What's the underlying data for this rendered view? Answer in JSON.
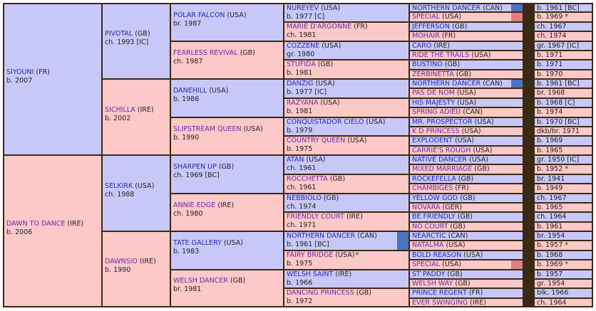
{
  "pedigree": {
    "subject": {
      "name": "SIYOUNI",
      "country": "(FR)",
      "info": "b. 2007",
      "sex": "m"
    },
    "gen1": [
      {
        "name": "SIYOUNI",
        "country": "(FR)",
        "info": "b. 2007",
        "sex": "m"
      },
      {
        "name": "DAWN TO DANCE",
        "country": "(IRE)",
        "info": "b. 2006",
        "sex": "f"
      }
    ],
    "gen2": [
      {
        "name": "PIVOTAL",
        "country": "(GB)",
        "info": "ch. 1993 [IC]",
        "sex": "m"
      },
      {
        "name": "SICHILLA",
        "country": "(IRE)",
        "info": "b. 2002",
        "sex": "f"
      },
      {
        "name": "SELKIRK",
        "country": "(USA)",
        "info": "ch. 1988",
        "sex": "m"
      },
      {
        "name": "DAWNSIO",
        "country": "(IRE)",
        "info": "b. 1990",
        "sex": "f"
      }
    ],
    "gen3": [
      {
        "name": "POLAR FALCON",
        "country": "(USA)",
        "info": "br. 1987",
        "sex": "m"
      },
      {
        "name": "FEARLESS REVIVAL",
        "country": "(GB)",
        "info": "ch. 1987",
        "sex": "f"
      },
      {
        "name": "DANEHILL",
        "country": "(USA)",
        "info": "b. 1986",
        "sex": "m"
      },
      {
        "name": "SLIPSTREAM QUEEN",
        "country": "(USA)",
        "info": "b. 1990",
        "sex": "f"
      },
      {
        "name": "SHARPEN UP",
        "country": "(GB)",
        "info": "ch. 1969 [BC]",
        "sex": "m"
      },
      {
        "name": "ANNIE EDGE",
        "country": "(IRE)",
        "info": "ch. 1980",
        "sex": "f"
      },
      {
        "name": "TATE GALLERY",
        "country": "(USA)",
        "info": "b. 1983",
        "sex": "m"
      },
      {
        "name": "WELSH DANCER",
        "country": "(GB)",
        "info": "br. 1981",
        "sex": "f"
      }
    ],
    "gen4": [
      {
        "name": "NUREYEV",
        "country": "(USA)",
        "info": "b. 1977 [C]",
        "sex": "m",
        "star": "",
        "swatch": ""
      },
      {
        "name": "MARIE D'ARGONNE",
        "country": "(FR)",
        "info": "ch. 1981",
        "sex": "f",
        "star": "",
        "swatch": ""
      },
      {
        "name": "COZZENE",
        "country": "(USA)",
        "info": "gr. 1980",
        "sex": "m",
        "star": "",
        "swatch": ""
      },
      {
        "name": "STUFIDA",
        "country": "(GB)",
        "info": "b. 1981",
        "sex": "f",
        "star": "",
        "swatch": ""
      },
      {
        "name": "DANZIG",
        "country": "(USA)",
        "info": "b. 1977 [IC]",
        "sex": "m",
        "star": "",
        "swatch": ""
      },
      {
        "name": "RAZYANA",
        "country": "(USA)",
        "info": "b. 1981",
        "sex": "f",
        "star": "",
        "swatch": ""
      },
      {
        "name": "CONQUISTADOR CIELO",
        "country": "(USA)",
        "info": "b. 1979",
        "sex": "m",
        "star": "",
        "swatch": ""
      },
      {
        "name": "COUNTRY QUEEN",
        "country": "(USA)",
        "info": "b. 1975",
        "sex": "f",
        "star": "",
        "swatch": ""
      },
      {
        "name": "ATAN",
        "country": "(USA)",
        "info": "ch. 1961",
        "sex": "m",
        "star": "",
        "swatch": ""
      },
      {
        "name": "ROCCHETTA",
        "country": "(GB)",
        "info": "ch. 1961",
        "sex": "f",
        "star": "",
        "swatch": ""
      },
      {
        "name": "NEBBIOLO",
        "country": "(GB)",
        "info": "ch. 1974",
        "sex": "m",
        "star": "",
        "swatch": ""
      },
      {
        "name": "FRIENDLY COURT",
        "country": "(IRE)",
        "info": "ch. 1971",
        "sex": "f",
        "star": "",
        "swatch": ""
      },
      {
        "name": "NORTHERN DANCER",
        "country": "(CAN)",
        "info": "b. 1961 [BC]",
        "sex": "m",
        "star": "",
        "swatch": "#4a74c0"
      },
      {
        "name": "FAIRY BRIDGE",
        "country": "(USA)",
        "info": "b. 1975",
        "sex": "f",
        "star": "*",
        "swatch": ""
      },
      {
        "name": "WELSH SAINT",
        "country": "(IRE)",
        "info": "b. 1966",
        "sex": "m",
        "star": "",
        "swatch": ""
      },
      {
        "name": "DANCING PRINCESS",
        "country": "(GB)",
        "info": "b. 1972",
        "sex": "f",
        "star": "",
        "swatch": ""
      }
    ],
    "gen5": [
      {
        "name": "NORTHERN DANCER",
        "country": "(CAN)",
        "info": "b. 1961 [BC]",
        "sex": "m",
        "star": "",
        "swatch": "#4a74c0"
      },
      {
        "name": "SPECIAL",
        "country": "(USA)",
        "info": "b. 1969",
        "sex": "f",
        "star": "*",
        "swatch": "#e08080"
      },
      {
        "name": "JEFFERSON",
        "country": "(GB)",
        "info": "ch. 1967",
        "sex": "m",
        "star": "",
        "swatch": ""
      },
      {
        "name": "MOHAIR",
        "country": "(FR)",
        "info": "ch. 1974",
        "sex": "f",
        "star": "",
        "swatch": ""
      },
      {
        "name": "CARO",
        "country": "(IRE)",
        "info": "gr. 1967 [IC]",
        "sex": "m",
        "star": "",
        "swatch": ""
      },
      {
        "name": "RIDE THE TRAILS",
        "country": "(USA)",
        "info": "b. 1971",
        "sex": "f",
        "star": "",
        "swatch": ""
      },
      {
        "name": "BUSTINO",
        "country": "(GB)",
        "info": "b. 1971",
        "sex": "m",
        "star": "",
        "swatch": ""
      },
      {
        "name": "ZERBINETTA",
        "country": "(GB)",
        "info": "b. 1970",
        "sex": "f",
        "star": "",
        "swatch": ""
      },
      {
        "name": "NORTHERN DANCER",
        "country": "(CAN)",
        "info": "b. 1961 [BC]",
        "sex": "m",
        "star": "",
        "swatch": "#4a74c0"
      },
      {
        "name": "PAS DE NOM",
        "country": "(USA)",
        "info": "br. 1968",
        "sex": "f",
        "star": "",
        "swatch": ""
      },
      {
        "name": "HIS MAJESTY",
        "country": "(USA)",
        "info": "b. 1968 [C]",
        "sex": "m",
        "star": "",
        "swatch": ""
      },
      {
        "name": "SPRING ADIEU",
        "country": "(CAN)",
        "info": "b. 1974",
        "sex": "f",
        "star": "",
        "swatch": ""
      },
      {
        "name": "MR. PROSPECTOR",
        "country": "(USA)",
        "info": "b. 1970 [BC]",
        "sex": "m",
        "star": "",
        "swatch": ""
      },
      {
        "name": "K D PRINCESS",
        "country": "(USA)",
        "info": "dkb/br. 1971",
        "sex": "f",
        "star": "",
        "swatch": ""
      },
      {
        "name": "EXPLODENT",
        "country": "(USA)",
        "info": "b. 1969",
        "sex": "m",
        "star": "",
        "swatch": ""
      },
      {
        "name": "CARRIE'S ROUGH",
        "country": "(USA)",
        "info": "b. 1965",
        "sex": "f",
        "star": "",
        "swatch": ""
      },
      {
        "name": "NATIVE DANCER",
        "country": "(USA)",
        "info": "gr. 1950 [IC]",
        "sex": "m",
        "star": "",
        "swatch": ""
      },
      {
        "name": "MIXED MARRIAGE",
        "country": "(GB)",
        "info": "b. 1952",
        "sex": "f",
        "star": "*",
        "swatch": ""
      },
      {
        "name": "ROCKEFELLA",
        "country": "(GB)",
        "info": "br. 1941",
        "sex": "m",
        "star": "",
        "swatch": ""
      },
      {
        "name": "CHAMBIGES",
        "country": "(FR)",
        "info": "b. 1949",
        "sex": "f",
        "star": "",
        "swatch": ""
      },
      {
        "name": "YELLOW GOD",
        "country": "(GB)",
        "info": "ch. 1967",
        "sex": "m",
        "star": "",
        "swatch": ""
      },
      {
        "name": "NOVARA",
        "country": "(GER)",
        "info": "b. 1965",
        "sex": "f",
        "star": "",
        "swatch": ""
      },
      {
        "name": "BE FRIENDLY",
        "country": "(GB)",
        "info": "ch. 1964",
        "sex": "m",
        "star": "",
        "swatch": ""
      },
      {
        "name": "NO COURT",
        "country": "(GB)",
        "info": "b. 1961",
        "sex": "f",
        "star": "",
        "swatch": ""
      },
      {
        "name": "NEARCTIC",
        "country": "(CAN)",
        "info": "br. 1954",
        "sex": "m",
        "star": "",
        "swatch": ""
      },
      {
        "name": "NATALMA",
        "country": "(USA)",
        "info": "b. 1957",
        "sex": "f",
        "star": "*",
        "swatch": ""
      },
      {
        "name": "BOLD REASON",
        "country": "(USA)",
        "info": "b. 1968",
        "sex": "m",
        "star": "",
        "swatch": ""
      },
      {
        "name": "SPECIAL",
        "country": "(USA)",
        "info": "b. 1969",
        "sex": "f",
        "star": "*",
        "swatch": "#e08080"
      },
      {
        "name": "ST PADDY",
        "country": "(GB)",
        "info": "b. 1957",
        "sex": "m",
        "star": "",
        "swatch": ""
      },
      {
        "name": "WELSH WAY",
        "country": "(GB)",
        "info": "gr. 1954",
        "sex": "f",
        "star": "",
        "swatch": ""
      },
      {
        "name": "PRINCE REGENT",
        "country": "(FR)",
        "info": "blk. 1966",
        "sex": "m",
        "star": "",
        "swatch": ""
      },
      {
        "name": "EVER SWINGING",
        "country": "(IRE)",
        "info": "ch. 1964",
        "sex": "f",
        "star": "",
        "swatch": ""
      }
    ]
  },
  "colors": {
    "male_bg": "#c8c8f8",
    "female_bg": "#fcc8c8",
    "border": "#3a2a14",
    "male_link": "#2a2aa8",
    "female_link": "#6a2aa8",
    "star": "#2a8a2a",
    "dup_northern_dancer": "#4a74c0",
    "dup_special": "#e08080"
  }
}
